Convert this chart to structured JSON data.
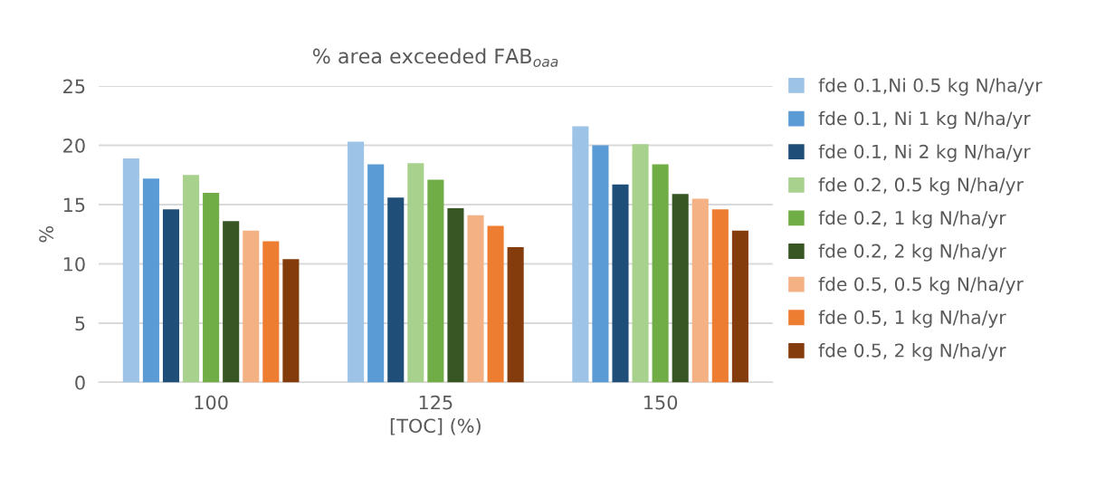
{
  "chart_data": {
    "type": "bar",
    "title": "% area exceeded FAB$_{oaa}$",
    "xlabel": "[TOC] (%)",
    "ylabel": "%",
    "categories": [
      "100",
      "125",
      "150"
    ],
    "series": [
      {
        "name": "fde 0.1,Ni 0.5 kg N/ha/yr",
        "color": "#9dc3e6",
        "values": [
          18.9,
          20.3,
          21.6
        ]
      },
      {
        "name": "fde 0.1, Ni 1 kg N/ha/yr",
        "color": "#5b9bd5",
        "values": [
          17.2,
          18.4,
          20.0
        ]
      },
      {
        "name": "fde 0.1, Ni 2 kg N/ha/yr",
        "color": "#1f4e79",
        "values": [
          14.6,
          15.6,
          16.7
        ]
      },
      {
        "name": "fde 0.2, 0.5 kg N/ha/yr",
        "color": "#a9d18e",
        "values": [
          17.5,
          18.5,
          20.1
        ]
      },
      {
        "name": "fde 0.2, 1 kg N/ha/yr",
        "color": "#70ad47",
        "values": [
          16.0,
          17.1,
          18.4
        ]
      },
      {
        "name": "fde 0.2, 2 kg N/ha/yr",
        "color": "#375623",
        "values": [
          13.6,
          14.7,
          15.9
        ]
      },
      {
        "name": "fde 0.5, 0.5 kg N/ha/yr",
        "color": "#f4b183",
        "values": [
          12.8,
          14.1,
          15.5
        ]
      },
      {
        "name": "fde 0.5, 1 kg N/ha/yr",
        "color": "#ed7d31",
        "values": [
          11.9,
          13.2,
          14.6
        ]
      },
      {
        "name": "fde 0.5, 2 kg N/ha/yr",
        "color": "#843c0c",
        "values": [
          10.4,
          11.4,
          12.8
        ]
      }
    ],
    "ylim": [
      0,
      25
    ],
    "yticks": [
      0,
      5,
      10,
      15,
      20,
      25
    ],
    "grid": "y",
    "legend": "right"
  }
}
